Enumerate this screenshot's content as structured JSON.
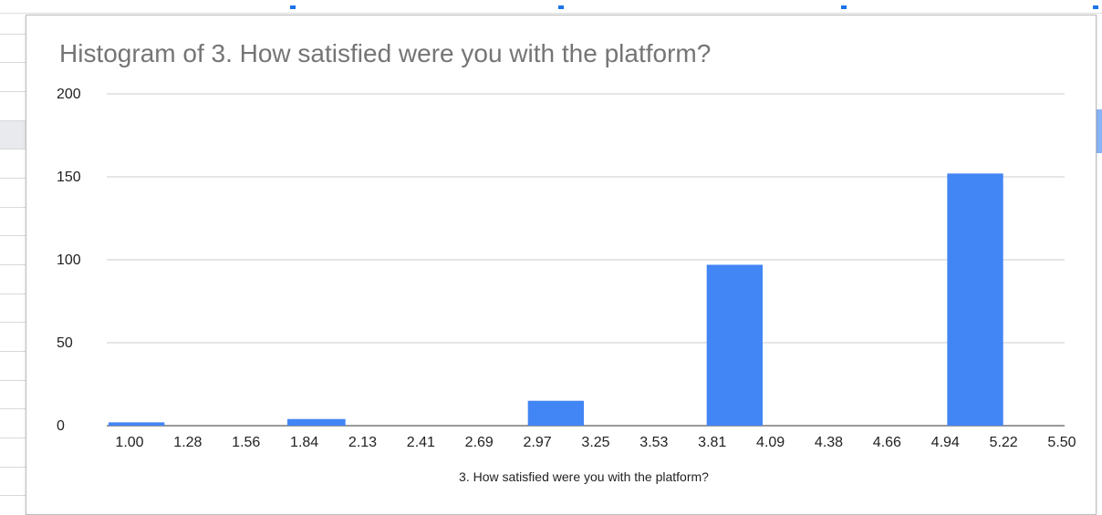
{
  "chart_data": {
    "type": "bar",
    "title": "Histogram of 3. How satisfied were you with the platform?",
    "xlabel": "3. How satisfied were you with the platform?",
    "ylabel": "",
    "ylim": [
      0,
      200
    ],
    "yticks": [
      "0",
      "50",
      "100",
      "150",
      "200"
    ],
    "x_ticks": [
      "1.00",
      "1.28",
      "1.56",
      "1.84",
      "2.13",
      "2.41",
      "2.69",
      "2.97",
      "3.25",
      "3.53",
      "3.81",
      "4.09",
      "4.38",
      "4.66",
      "4.94",
      "5.22",
      "5.50"
    ],
    "bins": [
      {
        "start": 1.0,
        "end": 1.28,
        "count": 2
      },
      {
        "start": 1.28,
        "end": 1.56,
        "count": 0
      },
      {
        "start": 1.56,
        "end": 1.84,
        "count": 0
      },
      {
        "start": 1.84,
        "end": 2.13,
        "count": 4
      },
      {
        "start": 2.13,
        "end": 2.41,
        "count": 0
      },
      {
        "start": 2.41,
        "end": 2.69,
        "count": 0
      },
      {
        "start": 2.69,
        "end": 2.97,
        "count": 0
      },
      {
        "start": 2.97,
        "end": 3.25,
        "count": 15
      },
      {
        "start": 3.25,
        "end": 3.53,
        "count": 0
      },
      {
        "start": 3.53,
        "end": 3.81,
        "count": 0
      },
      {
        "start": 3.81,
        "end": 4.09,
        "count": 97
      },
      {
        "start": 4.09,
        "end": 4.38,
        "count": 0
      },
      {
        "start": 4.38,
        "end": 4.66,
        "count": 0
      },
      {
        "start": 4.66,
        "end": 4.94,
        "count": 0
      },
      {
        "start": 4.94,
        "end": 5.22,
        "count": 152
      },
      {
        "start": 5.22,
        "end": 5.5,
        "count": 0
      }
    ],
    "grid": true,
    "legend": "none",
    "bar_color": "#4285f4",
    "grid_color": "#cccccc"
  }
}
